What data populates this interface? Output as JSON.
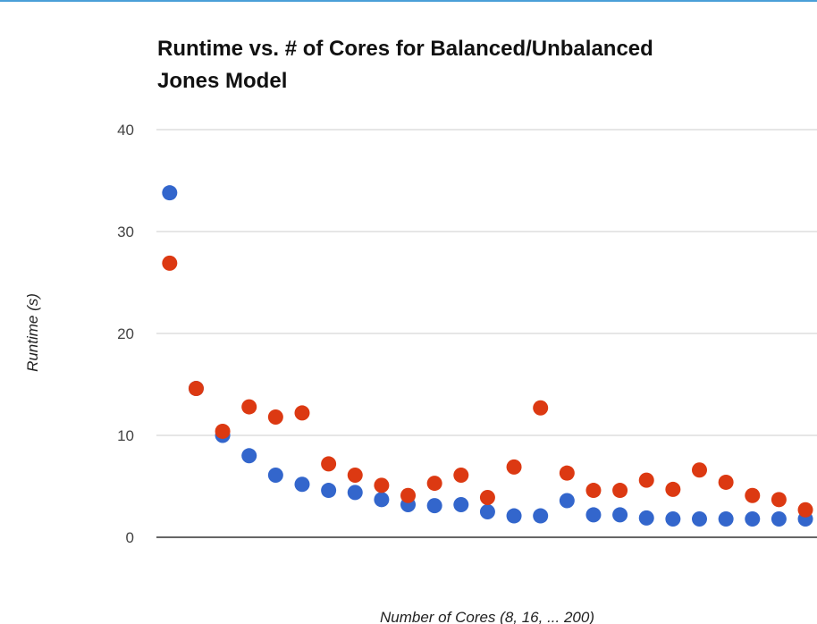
{
  "chart_data": {
    "type": "scatter",
    "title": [
      "Runtime vs. # of Cores for Balanced/Unbalanced",
      "Jones Model"
    ],
    "x_label": "Number of Cores (8, 16, ... 200)",
    "y_label": "Runtime (s)",
    "x": [
      8,
      16,
      24,
      32,
      40,
      48,
      56,
      64,
      72,
      80,
      88,
      96,
      104,
      112,
      120,
      128,
      136,
      144,
      152,
      160,
      168,
      176,
      184,
      192,
      200
    ],
    "series": [
      {
        "color": "#3366cc",
        "values": [
          33.8,
          14.6,
          10.0,
          8.0,
          6.1,
          5.2,
          4.6,
          4.4,
          3.7,
          3.2,
          3.1,
          3.2,
          2.5,
          2.1,
          2.1,
          3.6,
          2.2,
          2.2,
          1.9,
          1.8,
          1.8,
          1.8,
          1.8,
          1.8,
          1.8
        ]
      },
      {
        "color": "#dc3912",
        "values": [
          26.9,
          14.6,
          10.4,
          12.8,
          11.8,
          12.2,
          7.2,
          6.1,
          5.1,
          4.1,
          5.3,
          6.1,
          3.9,
          6.9,
          12.7,
          6.3,
          4.6,
          4.6,
          5.6,
          4.7,
          6.6,
          5.4,
          4.1,
          3.7,
          2.7
        ]
      }
    ],
    "xlim": [
      4,
      203.5
    ],
    "ylim": [
      0,
      40
    ],
    "yticks": [
      0,
      10,
      20,
      30,
      40
    ],
    "grid": true
  }
}
